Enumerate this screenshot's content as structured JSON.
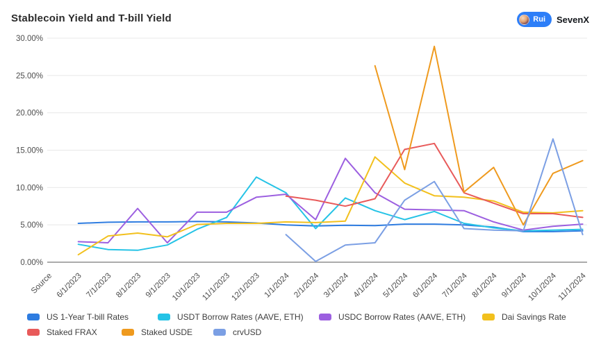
{
  "header": {
    "title": "Stablecoin Yield and T-bill Yield",
    "badge": {
      "author": "Rui",
      "org": "SevenX"
    }
  },
  "chart_data": {
    "type": "line",
    "title": "Stablecoin Yield and T-bill Yield",
    "xlabel": "",
    "ylabel": "",
    "ylim": [
      0,
      30
    ],
    "grid": true,
    "legend_position": "bottom",
    "y_ticks": [
      "0.00%",
      "5.00%",
      "10.00%",
      "15.00%",
      "20.00%",
      "25.00%",
      "30.00%"
    ],
    "x_labels": [
      "Source",
      "6/1/2023",
      "7/1/2023",
      "8/1/2023",
      "9/1/2023",
      "10/1/2023",
      "11/1/2023",
      "12/1/2023",
      "1/1/2024",
      "2/1/2024",
      "3/1/2024",
      "4/1/2024",
      "5/1/2024",
      "6/1/2024",
      "7/1/2024",
      "8/1/2024",
      "9/1/2024",
      "10/1/2024",
      "11/1/2024"
    ],
    "series": [
      {
        "name": "US 1-Year T-bill Rates",
        "color": "#2E7CE0",
        "values": [
          null,
          5.2,
          5.35,
          5.4,
          5.4,
          5.45,
          5.4,
          5.25,
          5.0,
          4.85,
          4.95,
          4.9,
          5.1,
          5.1,
          5.0,
          4.7,
          4.1,
          4.1,
          4.2
        ]
      },
      {
        "name": "USDT Borrow Rates (AAVE, ETH)",
        "color": "#25C3E6",
        "values": [
          null,
          2.4,
          1.7,
          1.6,
          2.3,
          4.4,
          6.0,
          11.4,
          9.3,
          4.5,
          8.6,
          6.9,
          5.7,
          6.8,
          5.2,
          4.6,
          4.2,
          4.3,
          4.4
        ]
      },
      {
        "name": "USDC Borrow Rates (AAVE, ETH)",
        "color": "#9C5FE0",
        "values": [
          null,
          2.75,
          2.6,
          7.2,
          2.6,
          6.7,
          6.7,
          8.7,
          9.1,
          5.7,
          13.9,
          9.3,
          7.1,
          7.0,
          6.9,
          5.4,
          4.3,
          4.8,
          5.1
        ]
      },
      {
        "name": "Dai Savings Rate",
        "color": "#F2C01D",
        "values": [
          null,
          1.0,
          3.5,
          3.9,
          3.4,
          5.05,
          5.2,
          5.2,
          5.4,
          5.3,
          5.5,
          14.1,
          10.6,
          8.9,
          8.7,
          8.2,
          6.7,
          6.6,
          6.9
        ]
      },
      {
        "name": "Staked FRAX",
        "color": "#E85A5A",
        "values": [
          null,
          null,
          null,
          null,
          null,
          null,
          null,
          null,
          8.85,
          8.3,
          7.5,
          8.5,
          15.1,
          15.9,
          9.3,
          7.9,
          6.5,
          6.5,
          6.0
        ]
      },
      {
        "name": "Staked USDE",
        "color": "#EF9A1E",
        "values": [
          null,
          null,
          null,
          null,
          null,
          null,
          null,
          null,
          null,
          null,
          null,
          26.3,
          12.4,
          28.9,
          9.4,
          12.7,
          5.0,
          11.9,
          13.6
        ]
      },
      {
        "name": "crvUSD",
        "color": "#7B9FE4",
        "values": [
          null,
          null,
          null,
          null,
          null,
          null,
          null,
          null,
          3.7,
          0.1,
          2.3,
          2.6,
          8.3,
          10.8,
          4.5,
          4.3,
          4.2,
          16.5,
          3.7
        ]
      }
    ]
  }
}
